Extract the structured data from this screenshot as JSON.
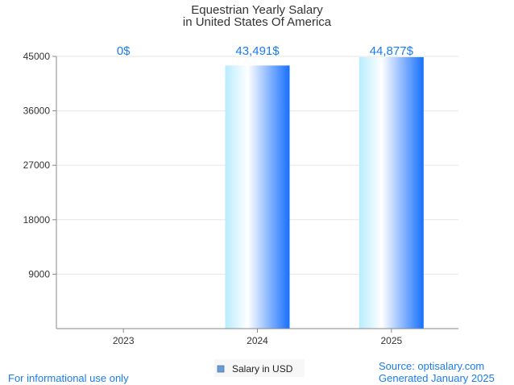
{
  "chart_data": {
    "type": "bar",
    "title": "Equestrian Yearly Salary",
    "subtitle": "in United States Of America",
    "categories": [
      "2023",
      "2024",
      "2025"
    ],
    "series": [
      {
        "name": "Salary in USD",
        "values": [
          0,
          43491,
          44877
        ]
      }
    ],
    "data_labels": [
      "0$",
      "43,491$",
      "44,877$"
    ],
    "y_ticks": [
      9000,
      18000,
      27000,
      36000,
      45000
    ],
    "ylim": [
      0,
      45000
    ],
    "grid": true,
    "legend_position": "bottom-center",
    "xlabel": "",
    "ylabel": ""
  },
  "footer": {
    "left_note": "For informational use only",
    "source": "Source: optisalary.com",
    "generated": "Generated January 2025"
  },
  "colors": {
    "bar_light": "#b8ecff",
    "bar_mid": "#ffffff",
    "bar_dark": "#1670ff",
    "label_blue": "#1a7cf0",
    "grid": "#e6e6e6",
    "legend_swatch": "#6b9bd1"
  }
}
